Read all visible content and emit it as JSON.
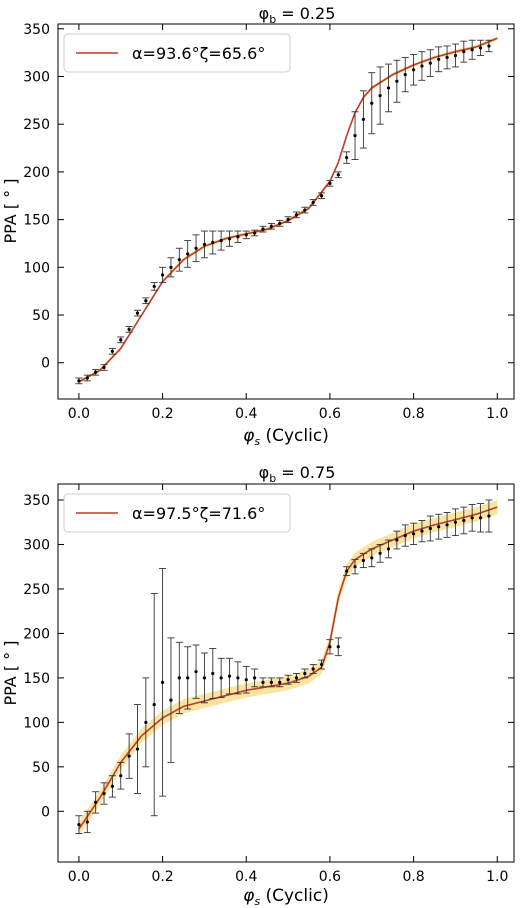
{
  "chart_data": [
    {
      "type": "scatter",
      "title_main": "φ",
      "title_sub": "b",
      "title_rest": " = 0.25",
      "xlabel_main": "φ",
      "xlabel_sub": "s",
      "xlabel_rest": " (Cyclic)",
      "ylabel": "PPA [ ° ]",
      "xlim": [
        -0.05,
        1.04
      ],
      "ylim": [
        -38,
        355
      ],
      "xticks": [
        0.0,
        0.2,
        0.4,
        0.6,
        0.8,
        1.0
      ],
      "xtick_labels": [
        "0.0",
        "0.2",
        "0.4",
        "0.6",
        "0.8",
        "1.0"
      ],
      "yticks": [
        0,
        50,
        100,
        150,
        200,
        250,
        300,
        350
      ],
      "ytick_labels": [
        "0",
        "50",
        "100",
        "150",
        "200",
        "250",
        "300",
        "350"
      ],
      "legend_location": "top-left",
      "legend_label": "α=93.6°ζ=65.6°",
      "fit_color": "#c0392b",
      "band_color": "#f5d76e",
      "band_halfwidth": 2,
      "fit_curve": {
        "x": [
          0.0,
          0.05,
          0.1,
          0.15,
          0.2,
          0.25,
          0.3,
          0.35,
          0.4,
          0.45,
          0.5,
          0.55,
          0.6,
          0.62,
          0.64,
          0.66,
          0.68,
          0.7,
          0.75,
          0.8,
          0.85,
          0.9,
          0.95,
          1.0
        ],
        "y": [
          -20,
          -8,
          15,
          50,
          85,
          108,
          122,
          130,
          135,
          140,
          149,
          162,
          190,
          210,
          238,
          262,
          278,
          288,
          302,
          312,
          320,
          326,
          331,
          340
        ]
      },
      "points": {
        "x": [
          0.0,
          0.02,
          0.04,
          0.06,
          0.08,
          0.1,
          0.12,
          0.14,
          0.16,
          0.18,
          0.2,
          0.22,
          0.24,
          0.26,
          0.28,
          0.3,
          0.32,
          0.34,
          0.36,
          0.38,
          0.4,
          0.42,
          0.44,
          0.46,
          0.48,
          0.5,
          0.52,
          0.54,
          0.56,
          0.58,
          0.6,
          0.62,
          0.64,
          0.66,
          0.68,
          0.7,
          0.72,
          0.74,
          0.76,
          0.78,
          0.8,
          0.82,
          0.84,
          0.86,
          0.88,
          0.9,
          0.92,
          0.94,
          0.96,
          0.98
        ],
        "y": [
          -19,
          -16,
          -10,
          -5,
          12,
          24,
          35,
          52,
          65,
          80,
          92,
          100,
          108,
          114,
          120,
          124,
          126,
          128,
          130,
          132,
          134,
          136,
          140,
          143,
          146,
          150,
          155,
          160,
          168,
          175,
          188,
          197,
          215,
          238,
          255,
          272,
          280,
          288,
          295,
          302,
          307,
          311,
          314,
          318,
          320,
          322,
          326,
          328,
          330,
          332
        ],
        "err": [
          3,
          3,
          3,
          3,
          3,
          3,
          3,
          3,
          3,
          4,
          8,
          10,
          12,
          14,
          14,
          14,
          12,
          10,
          8,
          6,
          4,
          3,
          3,
          3,
          3,
          3,
          3,
          3,
          3,
          3,
          3,
          3,
          6,
          25,
          30,
          32,
          30,
          25,
          22,
          18,
          16,
          15,
          14,
          13,
          12,
          12,
          11,
          10,
          8,
          6
        ]
      }
    },
    {
      "type": "scatter",
      "title_main": "φ",
      "title_sub": "b",
      "title_rest": " = 0.75",
      "xlabel_main": "φ",
      "xlabel_sub": "s",
      "xlabel_rest": " (Cyclic)",
      "ylabel": "PPA [ ° ]",
      "xlim": [
        -0.05,
        1.04
      ],
      "ylim": [
        -57,
        368
      ],
      "xticks": [
        0.0,
        0.2,
        0.4,
        0.6,
        0.8,
        1.0
      ],
      "xtick_labels": [
        "0.0",
        "0.2",
        "0.4",
        "0.6",
        "0.8",
        "1.0"
      ],
      "yticks": [
        0,
        50,
        100,
        150,
        200,
        250,
        300,
        350
      ],
      "ytick_labels": [
        "0",
        "50",
        "100",
        "150",
        "200",
        "250",
        "300",
        "350"
      ],
      "legend_location": "top-left",
      "legend_label": "α=97.5°ζ=71.6°",
      "fit_color": "#c0392b",
      "band_color": "#f5d76e",
      "band_halfwidth": 8,
      "fit_curve": {
        "x": [
          0.0,
          0.05,
          0.1,
          0.15,
          0.2,
          0.25,
          0.3,
          0.35,
          0.4,
          0.45,
          0.5,
          0.55,
          0.58,
          0.6,
          0.62,
          0.64,
          0.66,
          0.7,
          0.75,
          0.8,
          0.85,
          0.9,
          0.95,
          1.0
        ],
        "y": [
          -20,
          15,
          55,
          85,
          105,
          118,
          124,
          130,
          136,
          140,
          144,
          152,
          162,
          190,
          240,
          270,
          283,
          295,
          305,
          315,
          322,
          328,
          334,
          342
        ]
      },
      "points": {
        "x": [
          0.0,
          0.02,
          0.04,
          0.06,
          0.08,
          0.1,
          0.12,
          0.14,
          0.16,
          0.18,
          0.2,
          0.22,
          0.24,
          0.26,
          0.28,
          0.3,
          0.32,
          0.34,
          0.36,
          0.38,
          0.4,
          0.42,
          0.44,
          0.46,
          0.48,
          0.5,
          0.52,
          0.54,
          0.56,
          0.58,
          0.6,
          0.62,
          0.64,
          0.66,
          0.68,
          0.7,
          0.72,
          0.74,
          0.76,
          0.78,
          0.8,
          0.82,
          0.84,
          0.86,
          0.88,
          0.9,
          0.92,
          0.94,
          0.96,
          0.98
        ],
        "y": [
          -15,
          -12,
          10,
          20,
          28,
          40,
          62,
          70,
          100,
          120,
          145,
          125,
          150,
          150,
          157,
          150,
          155,
          150,
          152,
          150,
          148,
          150,
          145,
          145,
          145,
          148,
          150,
          155,
          160,
          165,
          185,
          185,
          270,
          275,
          282,
          285,
          290,
          295,
          305,
          310,
          312,
          315,
          318,
          320,
          322,
          325,
          327,
          330,
          330,
          332
        ],
        "err": [
          10,
          12,
          12,
          12,
          12,
          15,
          25,
          50,
          50,
          125,
          128,
          70,
          40,
          35,
          30,
          28,
          28,
          22,
          20,
          18,
          15,
          10,
          5,
          5,
          5,
          5,
          5,
          5,
          5,
          5,
          8,
          10,
          5,
          8,
          8,
          10,
          10,
          10,
          10,
          12,
          12,
          12,
          14,
          14,
          14,
          15,
          15,
          15,
          16,
          18
        ]
      }
    }
  ]
}
